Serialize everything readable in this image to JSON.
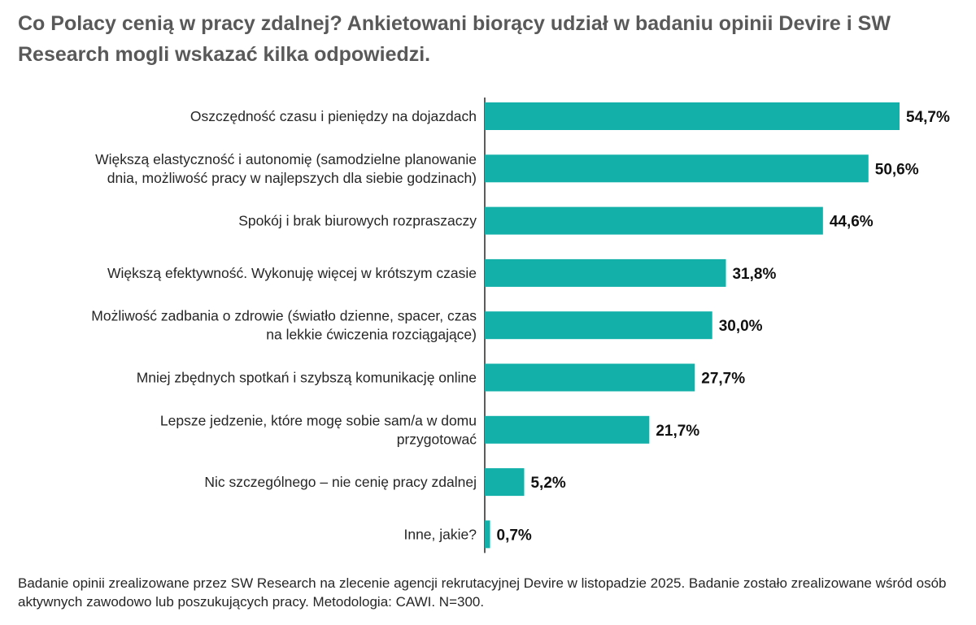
{
  "colors": {
    "bar": "#12b0a9",
    "axis": "#262626",
    "label": "#262626",
    "value": "#111111",
    "title": "#595959"
  },
  "chart_data": {
    "type": "bar",
    "orientation": "horizontal",
    "title": "Co Polacy cenią w pracy zdalnej? Ankietowani biorący udział w badaniu opinii Devire i SW Research mogli wskazać kilka odpowiedzi.",
    "unit": "%",
    "categories": [
      [
        "Oszczędność czasu i pieniędzy na dojazdach"
      ],
      [
        "Większą elastyczność i autonomię (samodzielne planowanie",
        "dnia, możliwość pracy w najlepszych dla siebie godzinach)"
      ],
      [
        "Spokój i brak biurowych rozpraszaczy"
      ],
      [
        "Większą efektywność. Wykonuję więcej w krótszym czasie"
      ],
      [
        "Możliwość zadbania o zdrowie (światło dzienne, spacer, czas",
        "na lekkie ćwiczenia rozciągające)"
      ],
      [
        "Mniej zbędnych spotkań i szybszą komunikację online"
      ],
      [
        "Lepsze jedzenie, które mogę sobie sam/a w domu",
        "przygotować"
      ],
      [
        "Nic szczególnego – nie cenię pracy zdalnej"
      ],
      [
        "Inne, jakie?"
      ]
    ],
    "values": [
      54.7,
      50.6,
      44.6,
      31.8,
      30.0,
      27.7,
      21.7,
      5.2,
      0.7
    ],
    "value_labels": [
      "54,7%",
      "50,6%",
      "44,6%",
      "31,8%",
      "30,0%",
      "27,7%",
      "21,7%",
      "5,2%",
      "0,7%"
    ],
    "xlim": [
      0,
      54.7
    ],
    "grid": false,
    "legend": "none"
  },
  "source_note": "Badanie opinii zrealizowane przez SW Research na zlecenie agencji rekrutacyjnej Devire w listopadzie 2025. Badanie zostało zrealizowane wśród osób aktywnych zawodowo lub poszukujących pracy. Metodologia: CAWI. N=300."
}
